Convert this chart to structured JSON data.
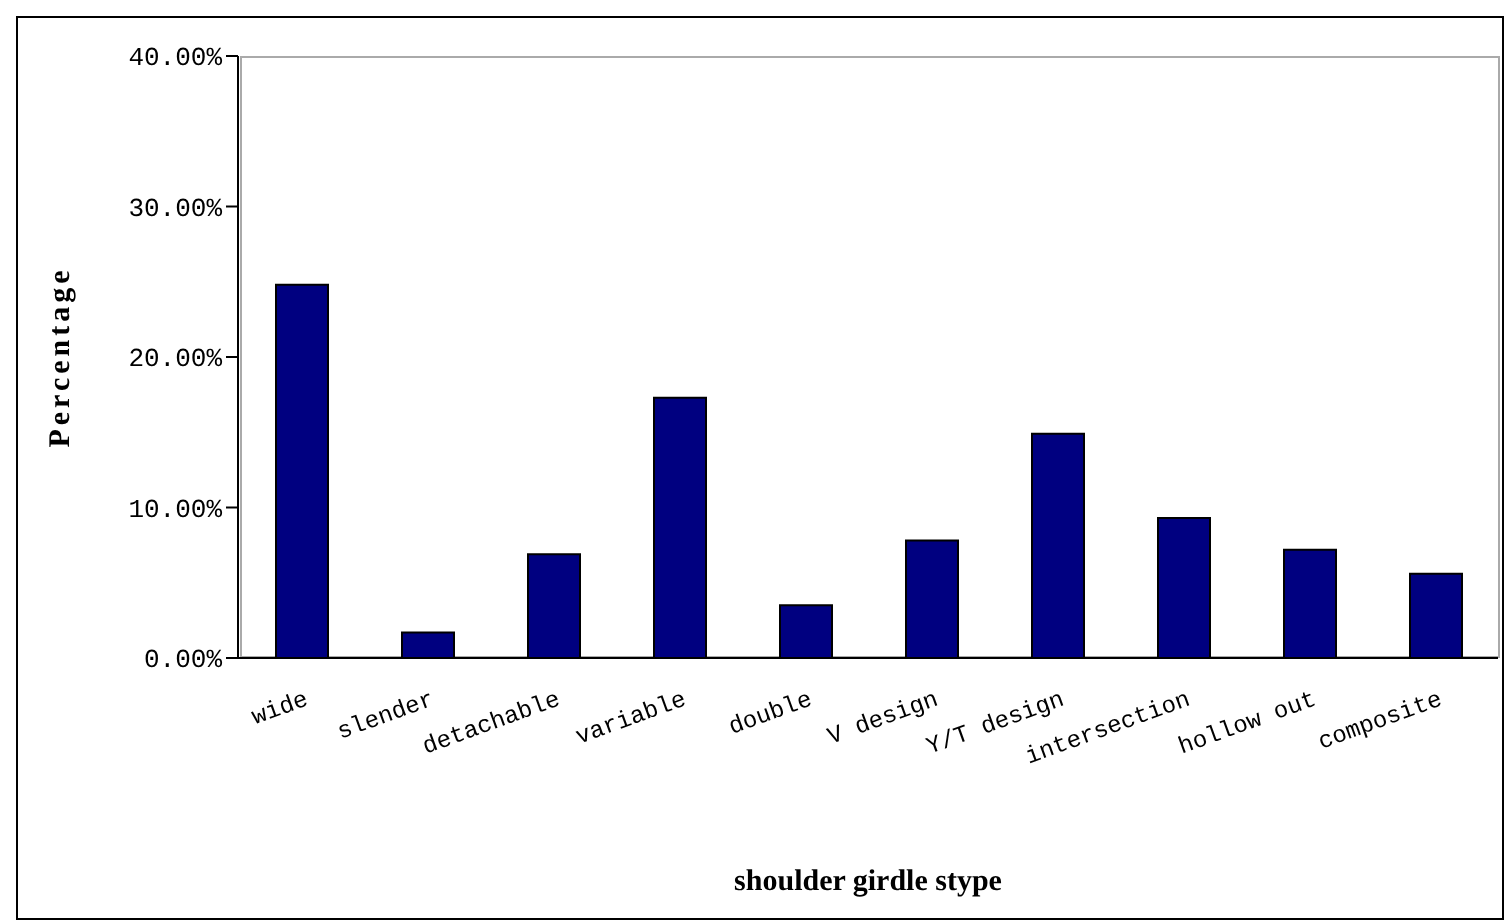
{
  "chart_data": {
    "type": "bar",
    "xlabel": "shoulder girdle stype",
    "ylabel": "Percentage",
    "categories": [
      "wide",
      "slender",
      "detachable",
      "variable",
      "double",
      "V design",
      "Y/T design",
      "intersection",
      "hollow out",
      "composite"
    ],
    "values": [
      24.8,
      1.7,
      6.9,
      17.3,
      3.5,
      7.8,
      14.9,
      9.3,
      7.2,
      5.6
    ],
    "color": "#000080",
    "ylim": [
      0,
      40
    ],
    "yticks": [
      {
        "value": 0,
        "label": "0.00%"
      },
      {
        "value": 10,
        "label": "10.00%"
      },
      {
        "value": 20,
        "label": "20.00%"
      },
      {
        "value": 30,
        "label": "30.00%"
      },
      {
        "value": 40,
        "label": "40.00%"
      }
    ]
  }
}
